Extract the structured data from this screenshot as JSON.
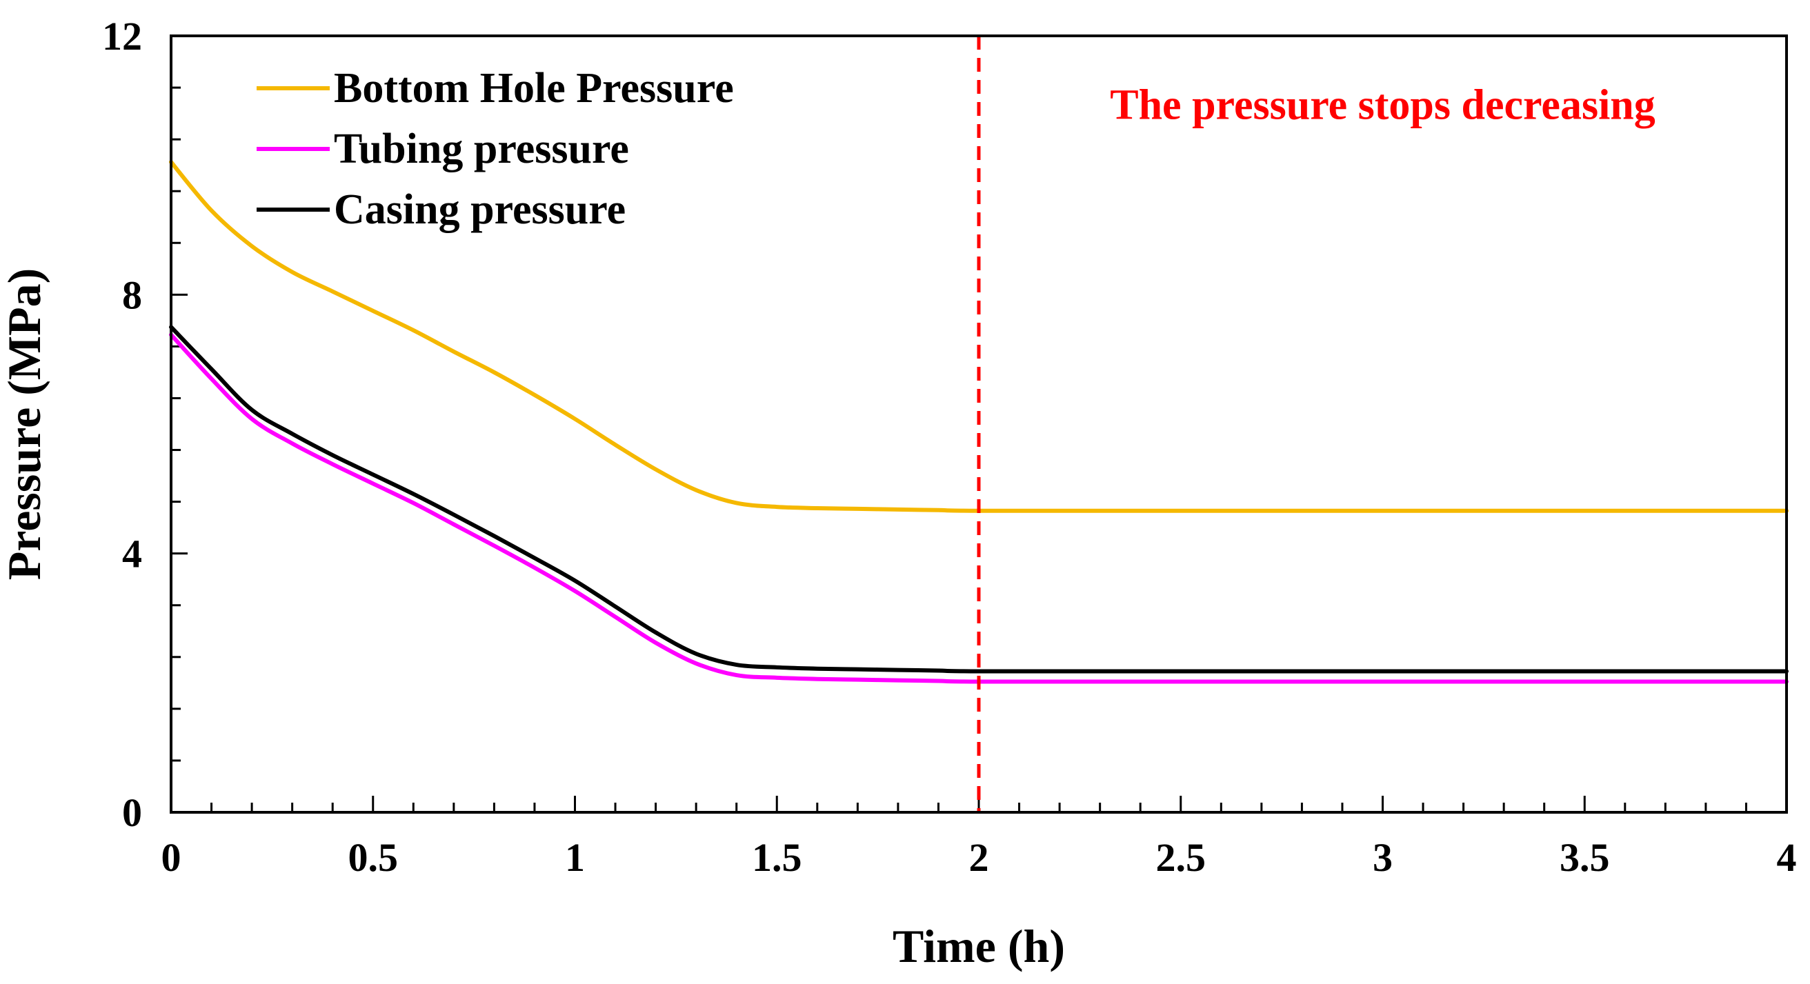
{
  "chart_data": {
    "type": "line",
    "title": "",
    "xlabel": "Time (h)",
    "ylabel": "Pressure (MPa)",
    "xlim": [
      0,
      4
    ],
    "ylim": [
      0,
      12
    ],
    "x_ticks": [
      0,
      0.5,
      1,
      1.5,
      2,
      2.5,
      3,
      3.5,
      4
    ],
    "x_tick_labels": [
      "0",
      "0.5",
      "1",
      "1.5",
      "2",
      "2.5",
      "3",
      "3.5",
      "4"
    ],
    "y_ticks": [
      0,
      4,
      8,
      12
    ],
    "y_tick_labels": [
      "0",
      "4",
      "8",
      "12"
    ],
    "x_minor_step": 0.1,
    "y_minor_step": 0.8,
    "grid": false,
    "legend_position": "top-left",
    "series": [
      {
        "name": "Bottom Hole Pressure",
        "color": "#F5B800",
        "x": [
          0,
          0.1,
          0.2,
          0.3,
          0.4,
          0.5,
          0.6,
          0.7,
          0.8,
          0.9,
          1.0,
          1.1,
          1.2,
          1.3,
          1.4,
          1.5,
          1.6,
          1.7,
          1.8,
          1.9,
          2.0,
          2.5,
          3.0,
          3.5,
          4.0
        ],
        "values": [
          10.05,
          9.3,
          8.75,
          8.35,
          8.05,
          7.75,
          7.45,
          7.12,
          6.8,
          6.45,
          6.08,
          5.68,
          5.3,
          4.98,
          4.78,
          4.72,
          4.7,
          4.69,
          4.68,
          4.67,
          4.66,
          4.66,
          4.66,
          4.66,
          4.66
        ]
      },
      {
        "name": "Tubing pressure",
        "color": "#FF00FF",
        "x": [
          0,
          0.1,
          0.2,
          0.3,
          0.4,
          0.5,
          0.6,
          0.7,
          0.8,
          0.9,
          1.0,
          1.1,
          1.2,
          1.3,
          1.4,
          1.5,
          1.6,
          1.7,
          1.8,
          1.9,
          2.0,
          2.5,
          3.0,
          3.5,
          4.0
        ],
        "values": [
          7.38,
          6.7,
          6.08,
          5.7,
          5.38,
          5.08,
          4.78,
          4.45,
          4.12,
          3.78,
          3.42,
          3.02,
          2.62,
          2.3,
          2.12,
          2.08,
          2.06,
          2.05,
          2.04,
          2.03,
          2.02,
          2.02,
          2.02,
          2.02,
          2.02
        ]
      },
      {
        "name": "Casing pressure",
        "color": "#000000",
        "x": [
          0,
          0.1,
          0.2,
          0.3,
          0.4,
          0.5,
          0.6,
          0.7,
          0.8,
          0.9,
          1.0,
          1.1,
          1.2,
          1.3,
          1.4,
          1.5,
          1.6,
          1.7,
          1.8,
          1.9,
          2.0,
          2.5,
          3.0,
          3.5,
          4.0
        ],
        "values": [
          7.5,
          6.85,
          6.22,
          5.85,
          5.52,
          5.22,
          4.92,
          4.6,
          4.27,
          3.93,
          3.58,
          3.18,
          2.78,
          2.45,
          2.28,
          2.24,
          2.22,
          2.21,
          2.2,
          2.19,
          2.18,
          2.18,
          2.18,
          2.18,
          2.18
        ]
      }
    ],
    "annotations": [
      {
        "type": "vline",
        "x": 2,
        "color": "#FF0000",
        "style": "dashed"
      },
      {
        "type": "text",
        "text": "The pressure stops decreasing",
        "color": "#FF0000",
        "anchor_x": 3,
        "anchor_y": 10.95
      }
    ]
  }
}
